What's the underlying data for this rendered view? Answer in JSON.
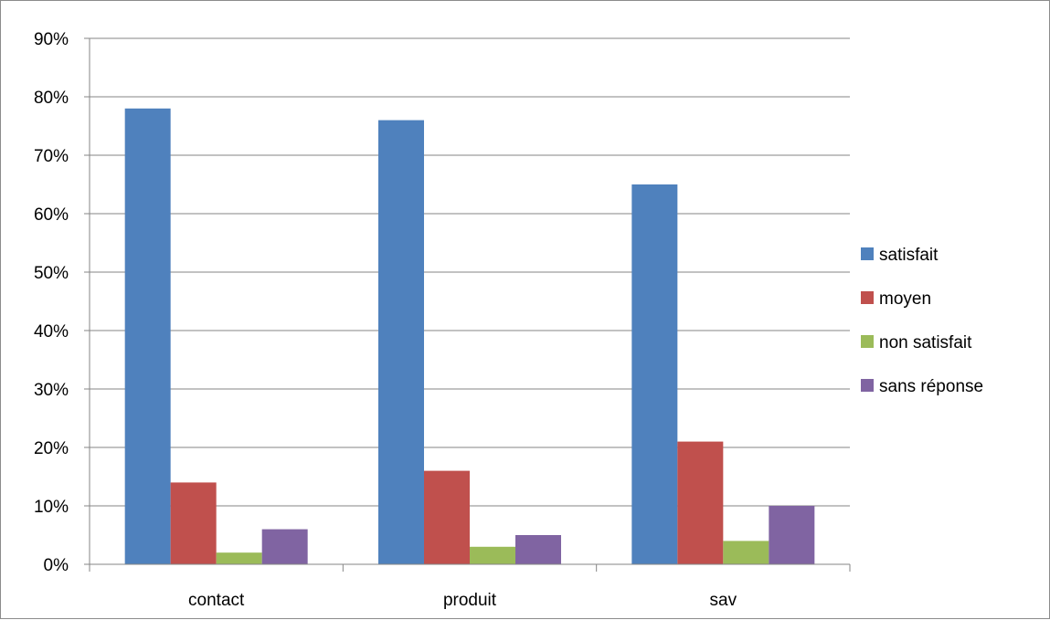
{
  "chart_data": {
    "type": "bar",
    "categories": [
      "contact",
      "produit",
      "sav"
    ],
    "series": [
      {
        "name": "satisfait",
        "values": [
          78,
          76,
          65
        ],
        "color": "#4F81BD"
      },
      {
        "name": "moyen",
        "values": [
          14,
          16,
          21
        ],
        "color": "#C0504D"
      },
      {
        "name": "non satisfait",
        "values": [
          2,
          3,
          4
        ],
        "color": "#9BBB59"
      },
      {
        "name": "sans réponse",
        "values": [
          6,
          5,
          10
        ],
        "color": "#8064A2"
      }
    ],
    "y_ticks": [
      "0%",
      "10%",
      "20%",
      "30%",
      "40%",
      "50%",
      "60%",
      "70%",
      "80%",
      "90%"
    ],
    "ylim": [
      0,
      90
    ],
    "y_unit": "%",
    "grid": true,
    "legend_position": "right"
  }
}
